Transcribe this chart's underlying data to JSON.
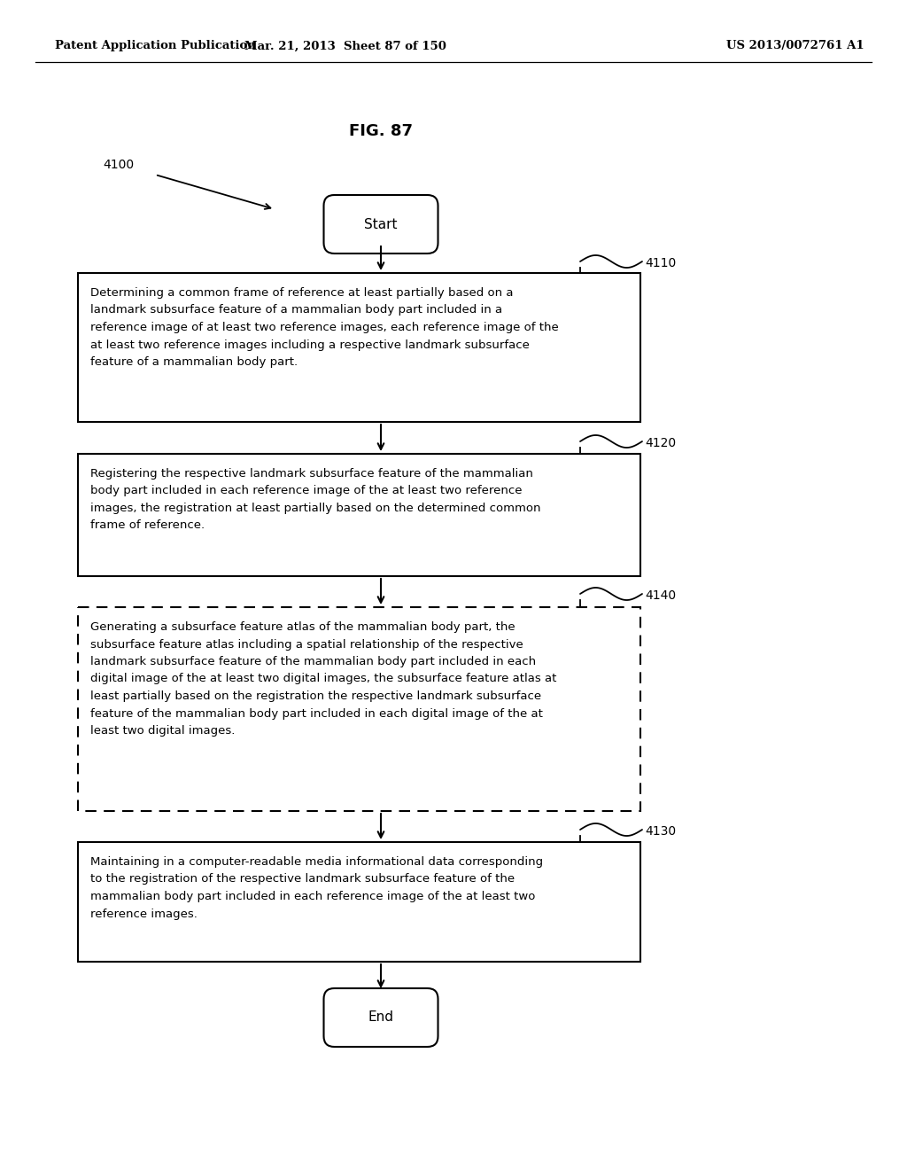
{
  "header_left": "Patent Application Publication",
  "header_mid": "Mar. 21, 2013  Sheet 87 of 150",
  "header_right": "US 2013/0072761 A1",
  "fig_title": "FIG. 87",
  "label_4100": "4100",
  "label_4110": "4110",
  "label_4120": "4120",
  "label_4140": "4140",
  "label_4130": "4130",
  "start_text": "Start",
  "end_text": "End",
  "box4110_text": "Determining a common frame of reference at least partially based on a\nlandmark subsurface feature of a mammalian body part included in a\nreference image of at least two reference images, each reference image of the\nat least two reference images including a respective landmark subsurface\nfeature of a mammalian body part.",
  "box4120_text": "Registering the respective landmark subsurface feature of the mammalian\nbody part included in each reference image of the at least two reference\nimages, the registration at least partially based on the determined common\nframe of reference.",
  "box4140_text": "Generating a subsurface feature atlas of the mammalian body part, the\nsubsurface feature atlas including a spatial relationship of the respective\nlandmark subsurface feature of the mammalian body part included in each\ndigital image of the at least two digital images, the subsurface feature atlas at\nleast partially based on the registration the respective landmark subsurface\nfeature of the mammalian body part included in each digital image of the at\nleast two digital images.",
  "box4130_text": "Maintaining in a computer-readable media informational data corresponding\nto the registration of the respective landmark subsurface feature of the\nmammalian body part included in each reference image of the at least two\nreference images.",
  "bg_color": "#ffffff",
  "text_color": "#000000",
  "line_color": "#000000"
}
